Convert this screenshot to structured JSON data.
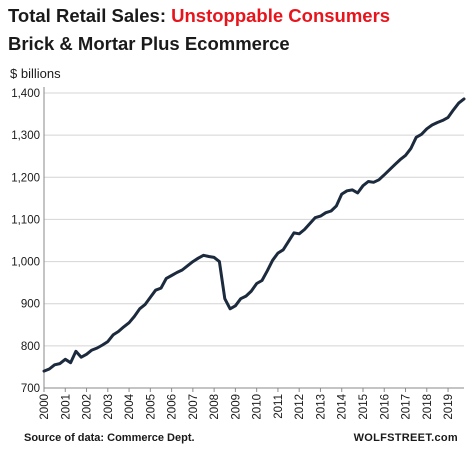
{
  "title": {
    "prefix": "Total Retail Sales:",
    "highlight": "Unstoppable Consumers",
    "line2": "Brick & Mortar Plus Ecommerce"
  },
  "unit_label": "$ billions",
  "source": "Source of data: Commerce Dept.",
  "brand": "WOLFSTREET.com",
  "colors": {
    "line": "#1c2a3d",
    "grid": "#d4d4d4",
    "title_accent": "#e8141c",
    "text": "#1a1a1a"
  },
  "chart_data": {
    "type": "line",
    "title": "Total Retail Sales: Unstoppable Consumers",
    "subtitle": "Brick & Mortar Plus Ecommerce",
    "ylabel": "$ billions",
    "xlabel": "",
    "ylim": [
      700,
      1400
    ],
    "xlim": [
      2000.0,
      2019.75
    ],
    "grid": "horizontal",
    "y_ticks": [
      "700",
      "800",
      "900",
      "1,000",
      "1,100",
      "1,200",
      "1,300",
      "1,400"
    ],
    "x_ticks": [
      "2000",
      "2001",
      "2002",
      "2003",
      "2004",
      "2005",
      "2006",
      "2007",
      "2008",
      "2009",
      "2010",
      "2011",
      "2012",
      "2013",
      "2014",
      "2015",
      "2016",
      "2017",
      "2018",
      "2019"
    ],
    "series": [
      {
        "x": [
          2000.0,
          2000.25,
          2000.5,
          2000.75,
          2001.0,
          2001.25,
          2001.5,
          2001.75,
          2002.0,
          2002.25,
          2002.5,
          2002.75,
          2003.0,
          2003.25,
          2003.5,
          2003.75,
          2004.0,
          2004.25,
          2004.5,
          2004.75,
          2005.0,
          2005.25,
          2005.5,
          2005.75,
          2006.0,
          2006.25,
          2006.5,
          2006.75,
          2007.0,
          2007.25,
          2007.5,
          2007.75,
          2008.0,
          2008.25,
          2008.5,
          2008.75,
          2009.0,
          2009.25,
          2009.5,
          2009.75,
          2010.0,
          2010.25,
          2010.5,
          2010.75,
          2011.0,
          2011.25,
          2011.5,
          2011.75,
          2012.0,
          2012.25,
          2012.5,
          2012.75,
          2013.0,
          2013.25,
          2013.5,
          2013.75,
          2014.0,
          2014.25,
          2014.5,
          2014.75,
          2015.0,
          2015.25,
          2015.5,
          2015.75,
          2016.0,
          2016.25,
          2016.5,
          2016.75,
          2017.0,
          2017.25,
          2017.5,
          2017.75,
          2018.0,
          2018.25,
          2018.5,
          2018.75,
          2019.0,
          2019.25,
          2019.5,
          2019.75
        ],
        "values": [
          740,
          745,
          755,
          758,
          768,
          760,
          787,
          773,
          780,
          790,
          795,
          802,
          810,
          826,
          834,
          845,
          855,
          870,
          888,
          898,
          915,
          932,
          937,
          960,
          967,
          974,
          980,
          990,
          1000,
          1008,
          1015,
          1012,
          1010,
          1000,
          912,
          888,
          895,
          912,
          918,
          930,
          948,
          955,
          978,
          1003,
          1020,
          1028,
          1048,
          1068,
          1066,
          1076,
          1090,
          1104,
          1108,
          1116,
          1120,
          1132,
          1160,
          1168,
          1170,
          1163,
          1180,
          1190,
          1188,
          1194,
          1206,
          1218,
          1230,
          1242,
          1252,
          1268,
          1295,
          1302,
          1315,
          1324,
          1330,
          1335,
          1342,
          1360,
          1376,
          1386
        ]
      }
    ]
  }
}
